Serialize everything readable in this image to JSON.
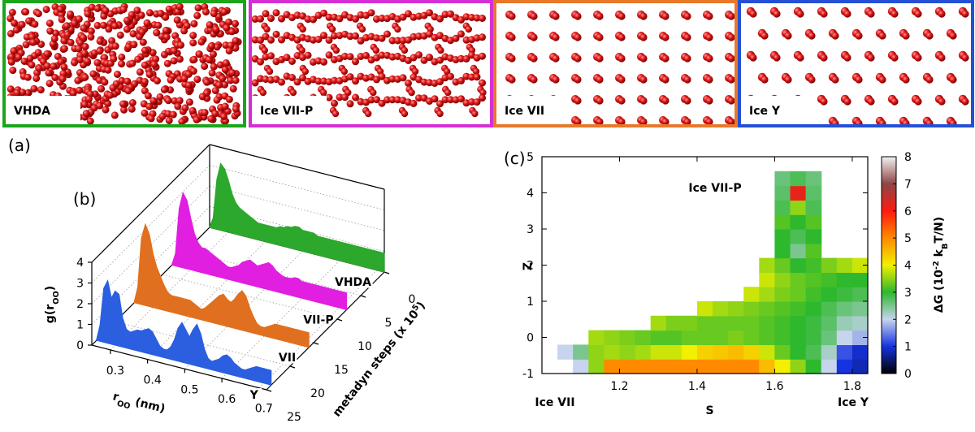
{
  "snapshots": [
    {
      "label": "VHDA",
      "color": "#1aa51a"
    },
    {
      "label": "Ice VII-P",
      "color": "#d42ed4"
    },
    {
      "label": "Ice VII",
      "color": "#e8782a"
    },
    {
      "label": "Ice Y",
      "color": "#2450d6"
    }
  ],
  "panel_labels": [
    "(a)",
    "(b)",
    "(c)"
  ],
  "chart_data": [
    {
      "type": "waterfall",
      "x_label": [
        "r",
        "OO",
        " (nm)"
      ],
      "y_label": [
        "g(r",
        "OO",
        ")"
      ],
      "z_label": [
        "metadyn steps (x 10",
        "5",
        ")"
      ],
      "xlim": [
        0.25,
        0.72
      ],
      "ylim": [
        0,
        4
      ],
      "zlim": [
        0,
        25
      ],
      "xticks": [
        0.3,
        0.4,
        0.5,
        0.6,
        0.7
      ],
      "yticks": [
        0,
        1,
        2,
        3,
        4
      ],
      "zticks": [
        0,
        5,
        10,
        15,
        20,
        25
      ],
      "x": [
        0.25,
        0.26,
        0.27,
        0.28,
        0.29,
        0.3,
        0.31,
        0.32,
        0.33,
        0.34,
        0.35,
        0.36,
        0.37,
        0.38,
        0.39,
        0.4,
        0.41,
        0.42,
        0.43,
        0.44,
        0.45,
        0.46,
        0.47,
        0.48,
        0.49,
        0.5,
        0.51,
        0.52,
        0.53,
        0.54,
        0.55,
        0.56,
        0.57,
        0.58,
        0.59,
        0.6,
        0.61,
        0.62,
        0.63,
        0.64,
        0.65,
        0.66,
        0.67,
        0.68,
        0.69,
        0.7,
        0.71,
        0.72
      ],
      "series": [
        {
          "name": "VHDA",
          "color": "#2ca82c",
          "depth": 0,
          "values": [
            0,
            0.5,
            2.4,
            3.2,
            3.0,
            2.5,
            1.9,
            1.5,
            1.3,
            1.2,
            1.1,
            1.0,
            0.9,
            0.8,
            0.8,
            0.8,
            0.8,
            0.8,
            0.8,
            0.9,
            0.9,
            1.0,
            1.0,
            1.1,
            1.1,
            1.0,
            1.0,
            1.0,
            1.0,
            0.9,
            0.9,
            0.9,
            0.9,
            0.9,
            0.9,
            0.9,
            0.9,
            0.9,
            0.9,
            0.9,
            0.9,
            0.9,
            0.9,
            0.9,
            0.9,
            0.9,
            0.9,
            0.9
          ]
        },
        {
          "name": "VII-P",
          "color": "#e01fe0",
          "depth": 8,
          "values": [
            0,
            0.6,
            2.8,
            3.6,
            3.3,
            2.5,
            1.8,
            1.4,
            1.2,
            1.2,
            1.1,
            1.0,
            0.9,
            0.8,
            0.7,
            0.6,
            0.6,
            0.7,
            0.8,
            1.0,
            1.1,
            1.2,
            1.1,
            1.0,
            1.1,
            1.2,
            1.3,
            1.2,
            1.0,
            0.9,
            0.8,
            0.8,
            0.8,
            0.9,
            0.9,
            0.8,
            0.8,
            0.8,
            0.8,
            0.8,
            0.8,
            0.8,
            0.8,
            0.8,
            0.8,
            0.8,
            0.8,
            0.8
          ]
        },
        {
          "name": "VII",
          "color": "#e0701f",
          "depth": 16,
          "values": [
            0,
            0.8,
            3.2,
            3.9,
            3.5,
            2.6,
            2.0,
            1.6,
            1.2,
            0.9,
            0.8,
            0.8,
            0.8,
            0.8,
            0.8,
            0.8,
            0.7,
            0.6,
            0.5,
            0.6,
            0.8,
            1.0,
            1.2,
            1.4,
            1.5,
            1.3,
            1.2,
            1.4,
            1.7,
            1.9,
            1.7,
            1.2,
            0.8,
            0.5,
            0.4,
            0.4,
            0.5,
            0.6,
            0.7,
            0.7,
            0.7,
            0.7,
            0.7,
            0.7,
            0.7,
            0.7,
            0.7,
            0.7
          ]
        },
        {
          "name": "Y",
          "color": "#2b5fe0",
          "depth": 24,
          "values": [
            0,
            0.8,
            2.6,
            3.0,
            2.2,
            2.6,
            2.5,
            1.4,
            0.9,
            0.8,
            0.9,
            1.0,
            1.0,
            1.1,
            1.2,
            1.1,
            0.8,
            0.5,
            0.4,
            0.4,
            0.6,
            1.0,
            1.6,
            1.9,
            1.6,
            1.3,
            1.7,
            2.0,
            1.6,
            0.9,
            0.5,
            0.4,
            0.5,
            0.6,
            0.8,
            0.9,
            0.8,
            0.6,
            0.5,
            0.4,
            0.4,
            0.5,
            0.6,
            0.7,
            0.7,
            0.7,
            0.7,
            0.7
          ]
        }
      ]
    },
    {
      "type": "heatmap",
      "x_label": "S",
      "y_label": "Z",
      "xlim": [
        1.0,
        1.84
      ],
      "ylim": [
        -1,
        5
      ],
      "xticks": [
        1.2,
        1.4,
        1.6,
        1.8
      ],
      "yticks": [
        -1,
        0,
        1,
        2,
        3,
        4,
        5
      ],
      "x_bins": [
        1.0,
        1.04,
        1.08,
        1.12,
        1.16,
        1.2,
        1.24,
        1.28,
        1.32,
        1.36,
        1.4,
        1.44,
        1.48,
        1.52,
        1.56,
        1.6,
        1.64,
        1.68,
        1.72,
        1.76,
        1.8,
        1.84
      ],
      "y_bins": [
        -1,
        -0.6,
        -0.2,
        0.2,
        0.6,
        1.0,
        1.4,
        1.8,
        2.2,
        2.6,
        3.0,
        3.4,
        3.8,
        4.2,
        4.6,
        5.0
      ],
      "values": [
        [
          null,
          null,
          2.0,
          3.5,
          5.0,
          5.0,
          5.0,
          5.0,
          5.0,
          5.0,
          5.0,
          5.0,
          5.0,
          5.0,
          4.5,
          4.0,
          3.5,
          3.0,
          2.0,
          1.0,
          0.8
        ],
        [
          null,
          2.0,
          2.5,
          3.5,
          3.6,
          3.5,
          3.6,
          3.8,
          3.8,
          4.0,
          4.3,
          4.4,
          4.5,
          4.3,
          3.8,
          3.3,
          3.0,
          2.8,
          2.2,
          1.2,
          0.9
        ],
        [
          null,
          null,
          null,
          3.6,
          3.5,
          3.4,
          3.3,
          3.2,
          3.2,
          3.3,
          3.3,
          3.3,
          3.4,
          3.3,
          3.2,
          3.1,
          3.0,
          2.9,
          2.6,
          2.0,
          1.8
        ],
        [
          null,
          null,
          null,
          null,
          null,
          null,
          null,
          3.6,
          3.4,
          3.4,
          3.3,
          3.3,
          3.3,
          3.3,
          3.2,
          3.1,
          3.0,
          2.9,
          2.7,
          2.3,
          2.2
        ],
        [
          null,
          null,
          null,
          null,
          null,
          null,
          null,
          null,
          null,
          null,
          3.8,
          3.6,
          3.5,
          3.4,
          3.3,
          3.2,
          3.1,
          3.0,
          2.8,
          2.6,
          2.5
        ],
        [
          null,
          null,
          null,
          null,
          null,
          null,
          null,
          null,
          null,
          null,
          null,
          null,
          null,
          3.8,
          3.6,
          3.4,
          3.3,
          3.1,
          3.0,
          2.9,
          2.8
        ],
        [
          null,
          null,
          null,
          null,
          null,
          null,
          null,
          null,
          null,
          null,
          null,
          null,
          null,
          null,
          3.8,
          3.5,
          3.3,
          3.2,
          3.1,
          3.0,
          3.0
        ],
        [
          null,
          null,
          null,
          null,
          null,
          null,
          null,
          null,
          null,
          null,
          null,
          null,
          null,
          null,
          3.6,
          3.3,
          3.0,
          3.1,
          3.4,
          3.6,
          3.8
        ],
        [
          null,
          null,
          null,
          null,
          null,
          null,
          null,
          null,
          null,
          null,
          null,
          null,
          null,
          null,
          null,
          3.0,
          2.5,
          3.2,
          null,
          null,
          null
        ],
        [
          null,
          null,
          null,
          null,
          null,
          null,
          null,
          null,
          null,
          null,
          null,
          null,
          null,
          null,
          null,
          3.0,
          2.8,
          3.0,
          null,
          null,
          null
        ],
        [
          null,
          null,
          null,
          null,
          null,
          null,
          null,
          null,
          null,
          null,
          null,
          null,
          null,
          null,
          null,
          3.2,
          3.0,
          3.2,
          null,
          null,
          null
        ],
        [
          null,
          null,
          null,
          null,
          null,
          null,
          null,
          null,
          null,
          null,
          null,
          null,
          null,
          null,
          null,
          2.8,
          3.5,
          2.8,
          null,
          null,
          null
        ],
        [
          null,
          null,
          null,
          null,
          null,
          null,
          null,
          null,
          null,
          null,
          null,
          null,
          null,
          null,
          null,
          2.7,
          6.2,
          2.7,
          null,
          null,
          null
        ],
        [
          null,
          null,
          null,
          null,
          null,
          null,
          null,
          null,
          null,
          null,
          null,
          null,
          null,
          null,
          null,
          2.6,
          2.8,
          2.6,
          null,
          null,
          null
        ],
        [
          null,
          null,
          null,
          null,
          null,
          null,
          null,
          null,
          null,
          null,
          null,
          null,
          null,
          null,
          null,
          null,
          null,
          null,
          null,
          null,
          null
        ]
      ],
      "colorbar_label": [
        "ΔG (10",
        "-2",
        " k",
        "B",
        "T/N)"
      ],
      "clim": [
        0,
        8
      ],
      "colorbar_ticks": [
        0,
        1,
        2,
        3,
        4,
        5,
        6,
        7,
        8
      ],
      "colormap": [
        "#000000",
        "#1533e0",
        "#c6d4ee",
        "#2db82d",
        "#f2f000",
        "#ff8a00",
        "#ff1a10",
        "#8c4646",
        "#f2f2f2"
      ],
      "annotations": [
        "Ice VII-P",
        "Ice VII",
        "Ice Y"
      ]
    }
  ]
}
